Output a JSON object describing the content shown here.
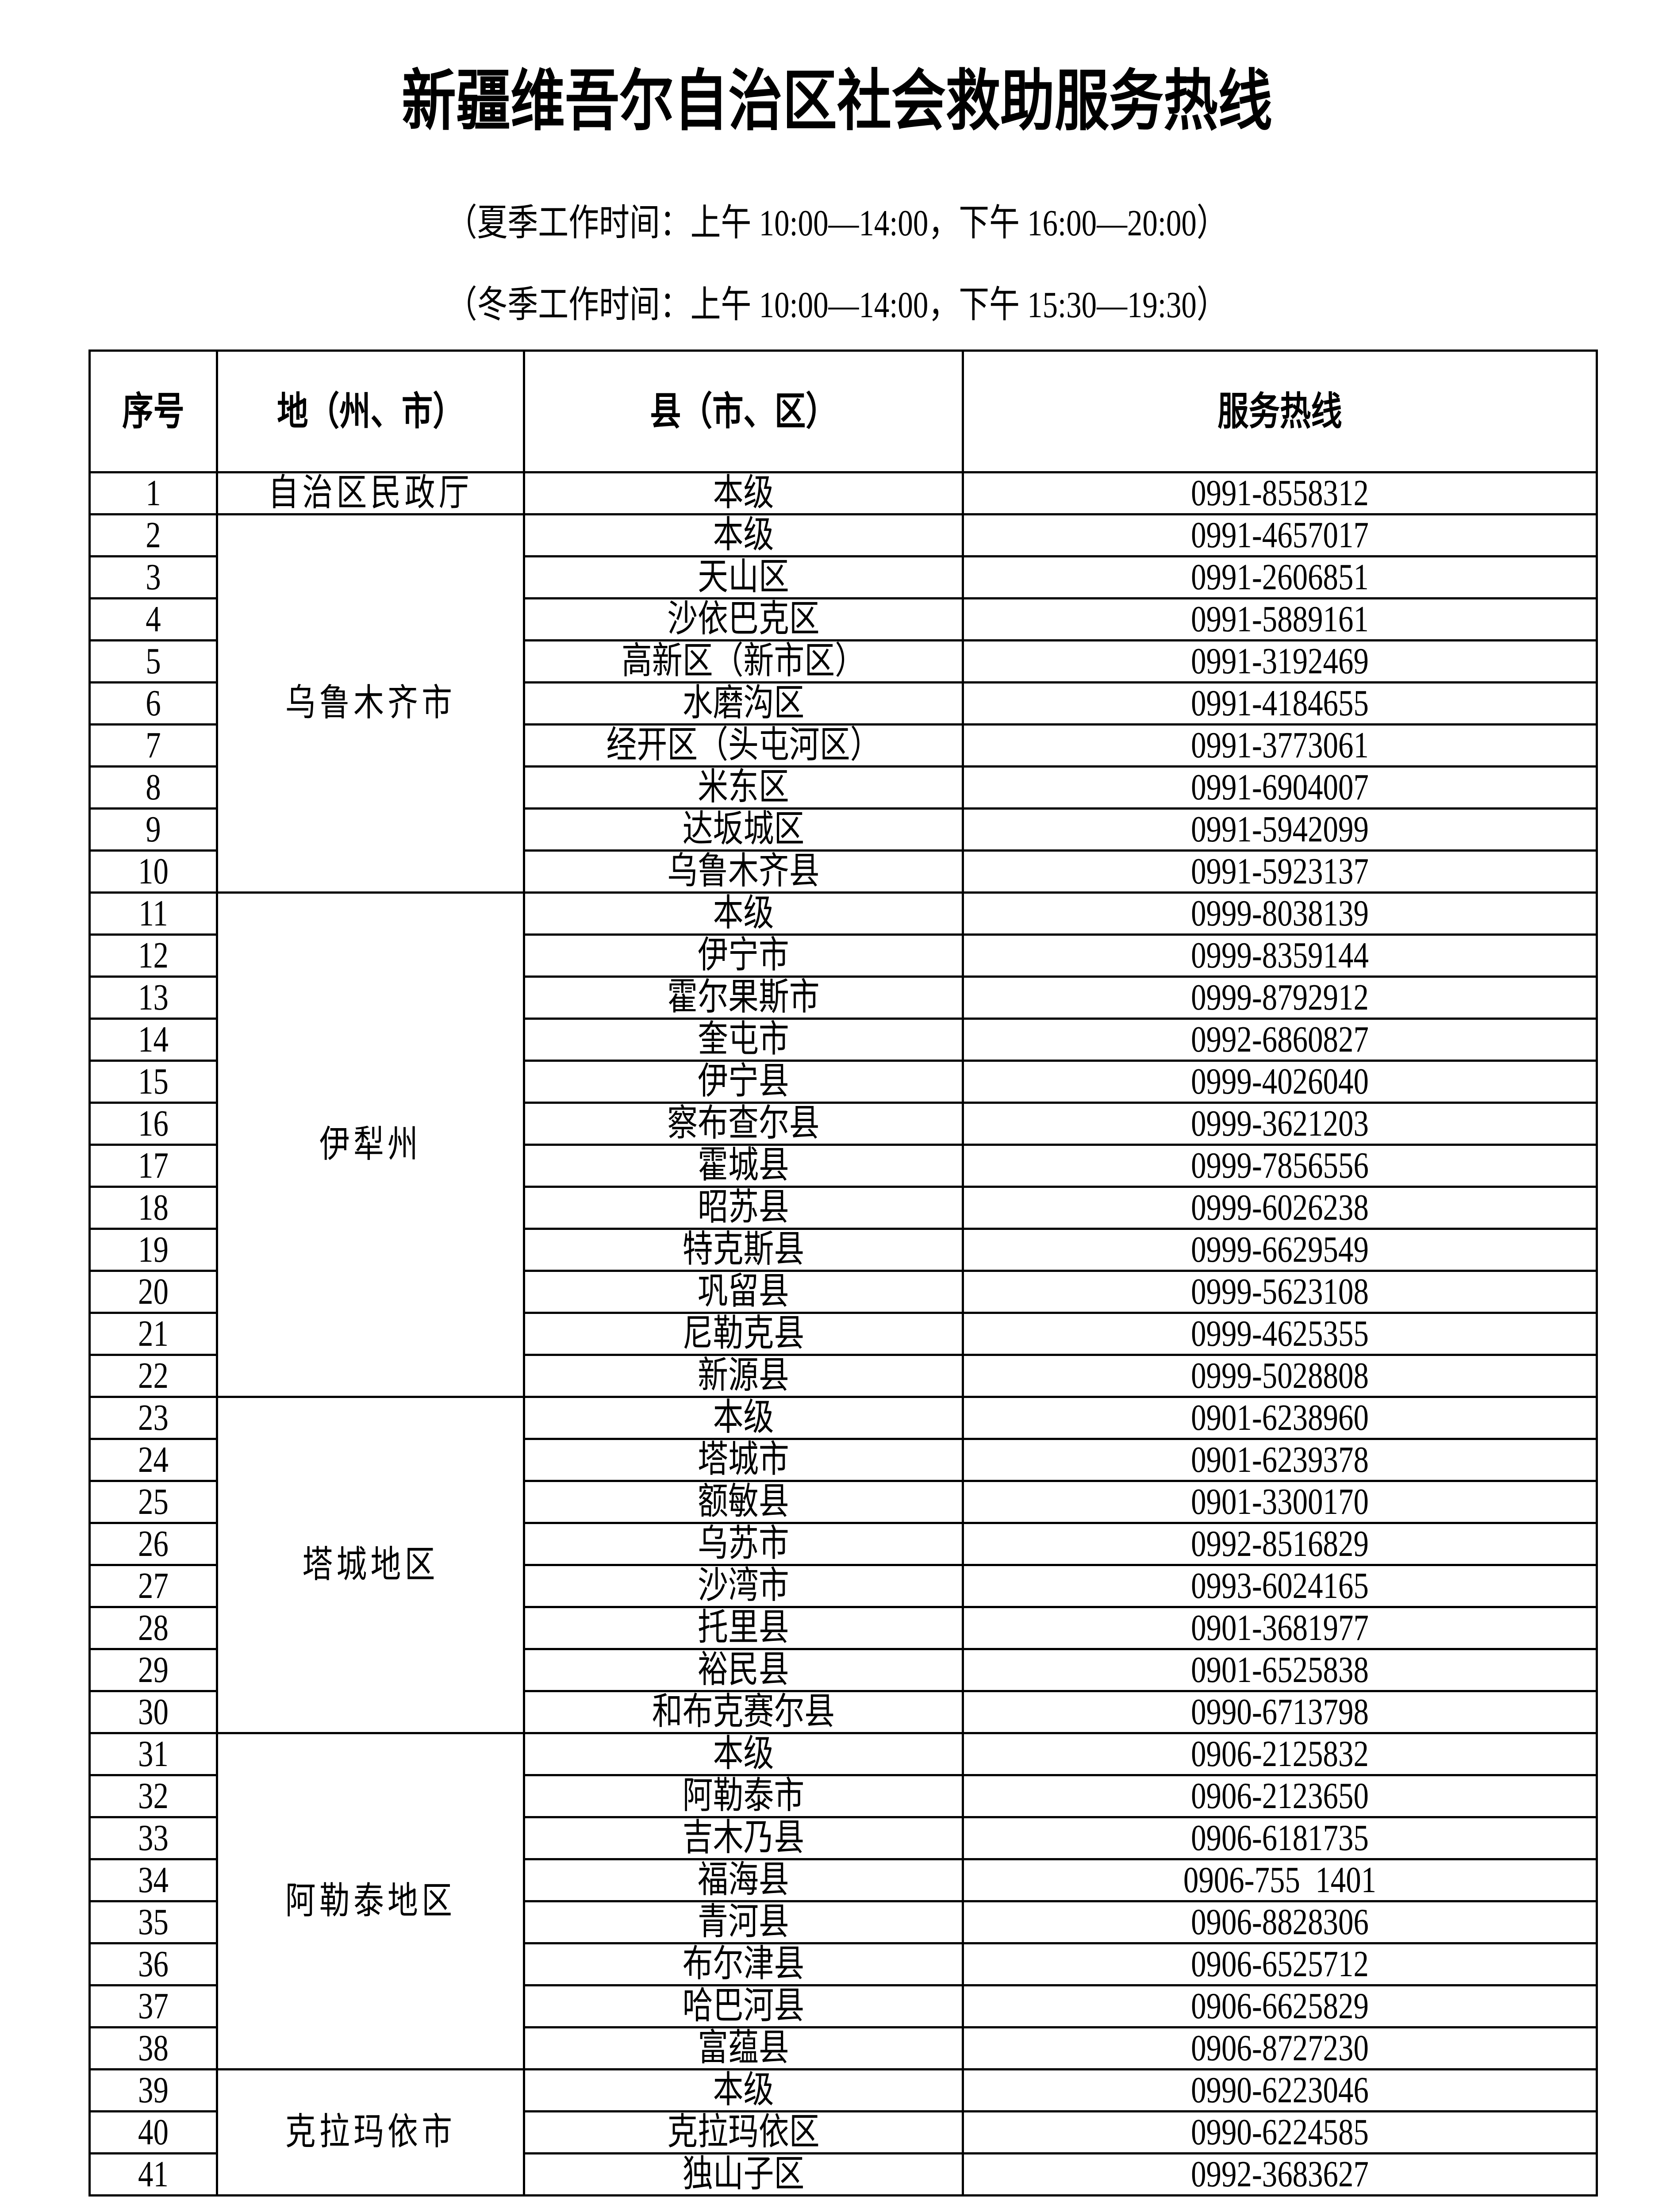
{
  "title": "新疆维吾尔自治区社会救助服务热线",
  "summer_hours": "（夏季工作时间：上午 10:00—14:00，下午 16:00—20:00）",
  "winter_hours": "（冬季工作时间：上午 10:00—14:00，下午 15:30—19:30）",
  "table": {
    "headers": [
      "序号",
      "地（州、市）",
      "县（市、区）",
      "服务热线"
    ],
    "groups": [
      {
        "region": "自治区民政厅",
        "rows": [
          [
            "本级",
            "0991-8558312"
          ]
        ]
      },
      {
        "region": "乌鲁木齐市",
        "rows": [
          [
            "本级",
            "0991-4657017"
          ],
          [
            "天山区",
            "0991-2606851"
          ],
          [
            "沙依巴克区",
            "0991-5889161"
          ],
          [
            "高新区（新市区）",
            "0991-3192469"
          ],
          [
            "水磨沟区",
            "0991-4184655"
          ],
          [
            "经开区（头屯河区）",
            "0991-3773061"
          ],
          [
            "米东区",
            "0991-6904007"
          ],
          [
            "达坂城区",
            "0991-5942099"
          ],
          [
            "乌鲁木齐县",
            "0991-5923137"
          ]
        ]
      },
      {
        "region": "伊犁州",
        "rows": [
          [
            "本级",
            "0999-8038139"
          ],
          [
            "伊宁市",
            "0999-8359144"
          ],
          [
            "霍尔果斯市",
            "0999-8792912"
          ],
          [
            "奎屯市",
            "0992-6860827"
          ],
          [
            "伊宁县",
            "0999-4026040"
          ],
          [
            "察布查尔县",
            "0999-3621203"
          ],
          [
            "霍城县",
            "0999-7856556"
          ],
          [
            "昭苏县",
            "0999-6026238"
          ],
          [
            "特克斯县",
            "0999-6629549"
          ],
          [
            "巩留县",
            "0999-5623108"
          ],
          [
            "尼勒克县",
            "0999-4625355"
          ],
          [
            "新源县",
            "0999-5028808"
          ]
        ]
      },
      {
        "region": "塔城地区",
        "rows": [
          [
            "本级",
            "0901-6238960"
          ],
          [
            "塔城市",
            "0901-6239378"
          ],
          [
            "额敏县",
            "0901-3300170"
          ],
          [
            "乌苏市",
            "0992-8516829"
          ],
          [
            "沙湾市",
            "0993-6024165"
          ],
          [
            "托里县",
            "0901-3681977"
          ],
          [
            "裕民县",
            "0901-6525838"
          ],
          [
            "和布克赛尔县",
            "0990-6713798"
          ]
        ]
      },
      {
        "region": "阿勒泰地区",
        "rows": [
          [
            "本级",
            "0906-2125832"
          ],
          [
            "阿勒泰市",
            "0906-2123650"
          ],
          [
            "吉木乃县",
            "0906-6181735"
          ],
          [
            "福海县",
            "0906-755  1401"
          ],
          [
            "青河县",
            "0906-8828306"
          ],
          [
            "布尔津县",
            "0906-6525712"
          ],
          [
            "哈巴河县",
            "0906-6625829"
          ],
          [
            "富蕴县",
            "0906-8727230"
          ]
        ]
      },
      {
        "region": "克拉玛依市",
        "rows": [
          [
            "本级",
            "0990-6223046"
          ],
          [
            "克拉玛依区",
            "0990-6224585"
          ],
          [
            "独山子区",
            "0992-3683627"
          ]
        ]
      }
    ]
  }
}
